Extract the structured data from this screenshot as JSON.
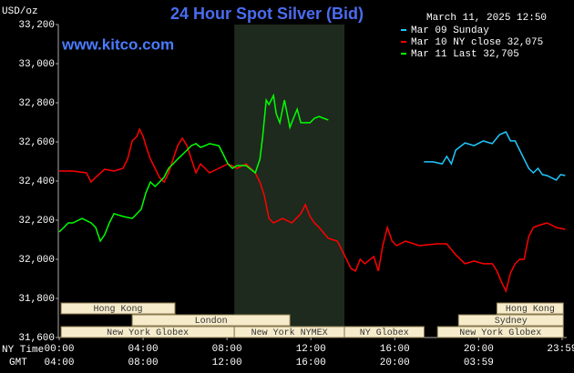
{
  "chart_data": {
    "type": "line",
    "title": "24 Hour Spot Silver (Bid)",
    "y_label": "USD/oz",
    "timestamp": "March 11, 2025 12:50",
    "site": "www.kitco.com",
    "x_axis_labels": [
      "NY Time",
      "GMT"
    ],
    "xlim": [
      0,
      24.2
    ],
    "xticks": [
      {
        "value": 0,
        "label": "00:00"
      },
      {
        "value": 4,
        "label": "04:00"
      },
      {
        "value": 8,
        "label": "08:00"
      },
      {
        "value": 12,
        "label": "12:00"
      },
      {
        "value": 16,
        "label": "16:00"
      },
      {
        "value": 20,
        "label": "20:00"
      },
      {
        "value": 23.98,
        "label": "23:59"
      }
    ],
    "xticks_gmt": [
      "04:00",
      "08:00",
      "12:00",
      "16:00",
      "20:00",
      "03:59"
    ],
    "ylim": [
      31.6,
      33.2
    ],
    "yticks": [
      {
        "value": 31.6,
        "label": "31,600"
      },
      {
        "value": 31.8,
        "label": "31,800"
      },
      {
        "value": 32.0,
        "label": "32,000"
      },
      {
        "value": 32.2,
        "label": "32,200"
      },
      {
        "value": 32.4,
        "label": "32,400"
      },
      {
        "value": 32.6,
        "label": "32,600"
      },
      {
        "value": 32.8,
        "label": "32,800"
      },
      {
        "value": 33.0,
        "label": "33,000"
      },
      {
        "value": 33.2,
        "label": "33,200"
      }
    ],
    "grid": false,
    "sessions": [
      {
        "label": "Hong Kong",
        "start": 0.09,
        "end": 5.52
      },
      {
        "label": "London",
        "start": 3.48,
        "end": 11.0
      },
      {
        "label": "New York Globex",
        "start": 0.09,
        "end": 8.35
      },
      {
        "label": "New York NYMEX",
        "start": 8.35,
        "end": 13.6
      },
      {
        "label": "NY Globex",
        "start": 13.6,
        "end": 17.4
      },
      {
        "label": "Hong Kong",
        "start": 20.87,
        "end": 24.04
      },
      {
        "label": "Sydney",
        "start": 19.04,
        "end": 24.04
      },
      {
        "label": "New York Globex",
        "start": 18.04,
        "end": 24.04
      }
    ],
    "series": [
      {
        "name": "Mar 09 Sunday",
        "color": "#20c8ff",
        "x": [
          17.39,
          17.83,
          18.26,
          18.48,
          18.7,
          18.91,
          19.35,
          19.78,
          20.22,
          20.65,
          21.0,
          21.3,
          21.52,
          21.74,
          21.96,
          22.17,
          22.39,
          22.61,
          22.83,
          23.04,
          23.26,
          23.7,
          23.91,
          24.13
        ],
        "values": [
          32.498,
          32.498,
          32.488,
          32.526,
          32.488,
          32.558,
          32.595,
          32.581,
          32.605,
          32.591,
          32.637,
          32.651,
          32.605,
          32.605,
          32.558,
          32.512,
          32.465,
          32.442,
          32.465,
          32.433,
          32.428,
          32.405,
          32.433,
          32.428
        ]
      },
      {
        "name": "Mar 10 NY close 32,075",
        "color": "#ff0000",
        "x": [
          0,
          0.65,
          1.3,
          1.52,
          1.74,
          2.17,
          2.61,
          3.04,
          3.26,
          3.48,
          3.7,
          3.83,
          4.0,
          4.13,
          4.35,
          4.57,
          4.78,
          5.0,
          5.22,
          5.43,
          5.65,
          5.87,
          6.09,
          6.3,
          6.52,
          6.74,
          7.17,
          7.61,
          8.04,
          8.48,
          8.91,
          9.35,
          9.57,
          9.78,
          10.0,
          10.22,
          10.65,
          11.09,
          11.52,
          11.74,
          11.96,
          12.17,
          12.39,
          12.83,
          13.26,
          13.48,
          13.7,
          13.91,
          14.13,
          14.35,
          14.57,
          15.0,
          15.22,
          15.43,
          15.65,
          15.87,
          16.09,
          16.52,
          17.17,
          18.04,
          18.48,
          18.91,
          19.35,
          19.78,
          20.22,
          20.65,
          20.87,
          21.09,
          21.3,
          21.52,
          21.74,
          21.96,
          22.17,
          22.39,
          22.61,
          22.83,
          23.26,
          23.7,
          24.13
        ],
        "values": [
          32.451,
          32.451,
          32.442,
          32.395,
          32.419,
          32.46,
          32.451,
          32.465,
          32.512,
          32.605,
          32.628,
          32.665,
          32.628,
          32.581,
          32.512,
          32.465,
          32.419,
          32.395,
          32.442,
          32.512,
          32.581,
          32.619,
          32.581,
          32.512,
          32.442,
          32.488,
          32.442,
          32.465,
          32.488,
          32.465,
          32.488,
          32.442,
          32.395,
          32.326,
          32.209,
          32.186,
          32.209,
          32.186,
          32.233,
          32.279,
          32.219,
          32.186,
          32.163,
          32.107,
          32.093,
          32.047,
          32.0,
          31.953,
          31.94,
          32.0,
          31.977,
          32.014,
          31.94,
          32.07,
          32.163,
          32.093,
          32.07,
          32.093,
          32.07,
          32.079,
          32.079,
          32.023,
          31.977,
          31.991,
          31.977,
          31.977,
          31.94,
          31.884,
          31.837,
          31.93,
          31.977,
          32.0,
          32.0,
          32.116,
          32.163,
          32.172,
          32.186,
          32.163,
          32.153
        ]
      },
      {
        "name": "Mar 11 Last 32,705",
        "color": "#00ff00",
        "x": [
          0,
          0.22,
          0.43,
          0.65,
          1.09,
          1.52,
          1.74,
          1.96,
          2.17,
          2.39,
          2.61,
          3.04,
          3.48,
          3.7,
          3.91,
          4.13,
          4.35,
          4.57,
          4.78,
          5.0,
          5.22,
          5.43,
          5.65,
          5.87,
          6.09,
          6.3,
          6.52,
          6.74,
          6.96,
          7.17,
          7.61,
          7.83,
          8.04,
          8.26,
          8.48,
          8.91,
          9.35,
          9.57,
          9.7,
          9.87,
          10.0,
          10.22,
          10.35,
          10.52,
          10.74,
          11.0,
          11.17,
          11.35,
          11.52,
          11.74,
          11.96,
          12.17,
          12.39,
          12.61,
          12.83
        ],
        "values": [
          32.14,
          32.163,
          32.186,
          32.186,
          32.209,
          32.186,
          32.163,
          32.093,
          32.126,
          32.186,
          32.233,
          32.219,
          32.209,
          32.233,
          32.256,
          32.34,
          32.395,
          32.372,
          32.395,
          32.419,
          32.465,
          32.488,
          32.512,
          32.535,
          32.558,
          32.581,
          32.591,
          32.572,
          32.581,
          32.591,
          32.581,
          32.535,
          32.488,
          32.465,
          32.479,
          32.479,
          32.442,
          32.512,
          32.628,
          32.814,
          32.791,
          32.837,
          32.744,
          32.698,
          32.814,
          32.674,
          32.721,
          32.767,
          32.698,
          32.698,
          32.698,
          32.721,
          32.73,
          32.721,
          32.712
        ]
      }
    ]
  }
}
